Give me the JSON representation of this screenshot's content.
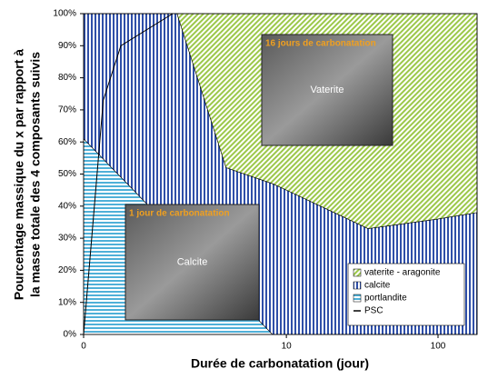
{
  "chart_data": {
    "type": "stacked-area",
    "xlabel": "Durée de carbonatation (jour)",
    "ylabel": [
      "Pourcentage massique du x par rapport à",
      "la masse totale des 4 composants suivis"
    ],
    "xscale": "log",
    "xlim": [
      0.46,
      181
    ],
    "xticks": [
      {
        "value": 0.46,
        "label": "0"
      },
      10,
      100
    ],
    "ylim": [
      0,
      100
    ],
    "yticks": [
      {
        "value": 0,
        "label": "0%"
      },
      {
        "value": 10,
        "label": "10%"
      },
      {
        "value": 20,
        "label": "20%"
      },
      {
        "value": 30,
        "label": "30%"
      },
      {
        "value": 40,
        "label": "40%"
      },
      {
        "value": 50,
        "label": "50%"
      },
      {
        "value": 60,
        "label": "60%"
      },
      {
        "value": 70,
        "label": "70%"
      },
      {
        "value": 80,
        "label": "80%"
      },
      {
        "value": 90,
        "label": "90%"
      },
      {
        "value": 100,
        "label": "100%"
      }
    ],
    "x": [
      0.46,
      1.9,
      4.0,
      8.1,
      10,
      34.6,
      100,
      181
    ],
    "series": [
      {
        "name": "portlandite",
        "color": "#4fb0d8",
        "pattern": "horizontal",
        "values": [
          61,
          31,
          15,
          0,
          0,
          0,
          0,
          0
        ]
      },
      {
        "name": "calcite",
        "color": "#2f4fa8",
        "pattern": "vertical",
        "values": [
          39,
          69,
          37,
          47,
          45,
          33,
          36,
          38
        ]
      },
      {
        "name": "vaterite - aragonite",
        "color": "#9cc84a",
        "pattern": "diagonal",
        "values": [
          0,
          0,
          48,
          53,
          55,
          67,
          64,
          62
        ]
      }
    ],
    "line": {
      "name": "PSC",
      "color": "#000000",
      "x": [
        0.46,
        0.62,
        0.81,
        1.78
      ],
      "values": [
        0,
        73,
        90,
        100
      ]
    },
    "annotations": [
      {
        "title": "16 jours de carbonatation",
        "label": "Vaterite"
      },
      {
        "title": "1 jour de carbonatation",
        "label": "Calcite"
      }
    ]
  }
}
